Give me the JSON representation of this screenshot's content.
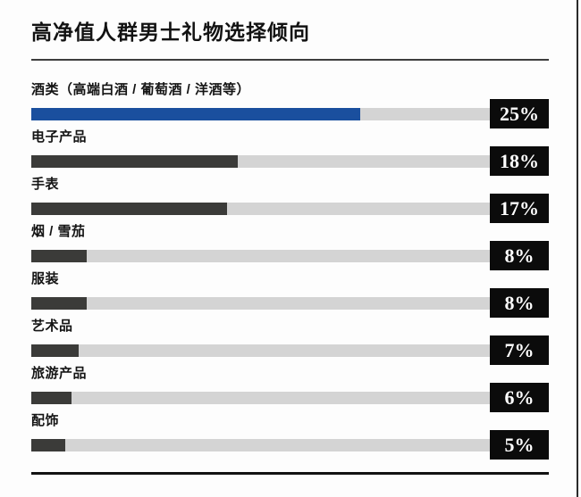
{
  "page": {
    "background": "#fdfdfd",
    "right_edge_color": "#2a2a2a"
  },
  "chart_data": {
    "type": "bar",
    "orientation": "horizontal",
    "title": "高净值人群男士礼物选择倾向",
    "unit": "%",
    "categories": [
      "酒类（高端白酒 / 葡萄酒 / 洋酒等）",
      "电子产品",
      "手表",
      "烟 / 雪茄",
      "服装",
      "艺术品",
      "旅游产品",
      "配饰"
    ],
    "values": [
      25,
      18,
      17,
      8,
      8,
      7,
      6,
      5
    ],
    "xlim": [
      0,
      100
    ],
    "grid": false,
    "legend": "none",
    "track_color": "#d4d4d4",
    "value_box_bg": "#0b0b0b",
    "value_box_text_color": "#ffffff",
    "highlight_color": "#1a4f9e",
    "default_bar_color": "#3b3b39",
    "rows": [
      {
        "label": "酒类（高端白酒 / 葡萄酒 / 洋酒等）",
        "value": 25,
        "value_label": "25%",
        "bar_color": "#1a4f9e",
        "bar_fill_pct_of_track": 71.7
      },
      {
        "label": "电子产品",
        "value": 18,
        "value_label": "18%",
        "bar_color": "#3b3b39",
        "bar_fill_pct_of_track": 45.0
      },
      {
        "label": "手表",
        "value": 17,
        "value_label": "17%",
        "bar_color": "#3b3b39",
        "bar_fill_pct_of_track": 42.7
      },
      {
        "label": "烟 / 雪茄",
        "value": 8,
        "value_label": "8%",
        "bar_color": "#3b3b39",
        "bar_fill_pct_of_track": 12.1
      },
      {
        "label": "服装",
        "value": 8,
        "value_label": "8%",
        "bar_color": "#3b3b39",
        "bar_fill_pct_of_track": 12.1
      },
      {
        "label": "艺术品",
        "value": 7,
        "value_label": "7%",
        "bar_color": "#3b3b39",
        "bar_fill_pct_of_track": 10.3
      },
      {
        "label": "旅游产品",
        "value": 6,
        "value_label": "6%",
        "bar_color": "#3b3b39",
        "bar_fill_pct_of_track": 8.8
      },
      {
        "label": "配饰",
        "value": 5,
        "value_label": "5%",
        "bar_color": "#3b3b39",
        "bar_fill_pct_of_track": 7.4
      }
    ]
  }
}
